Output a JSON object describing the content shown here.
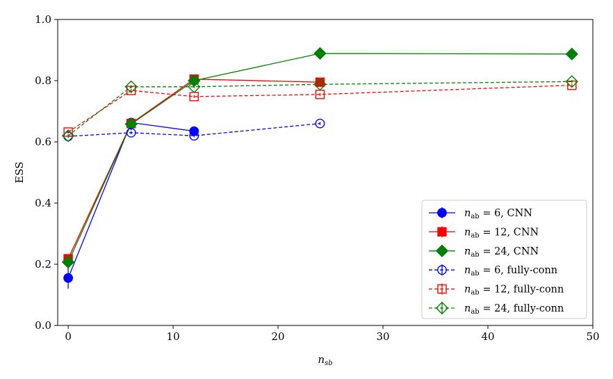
{
  "chart_data": {
    "type": "line",
    "title": "",
    "xlabel": "n",
    "xlabel_sub": "sb",
    "ylabel": "ESS",
    "xlim": [
      -1,
      50
    ],
    "ylim": [
      0.0,
      1.0
    ],
    "xticks": [
      0,
      10,
      20,
      30,
      40,
      50
    ],
    "yticks": [
      0.0,
      0.2,
      0.4,
      0.6,
      0.8,
      1.0
    ],
    "xtick_labels": [
      "0",
      "10",
      "20",
      "30",
      "40",
      "50"
    ],
    "ytick_labels": [
      "0.0",
      "0.2",
      "0.4",
      "0.6",
      "0.8",
      "1.0"
    ],
    "grid": false,
    "legend_position": "lower-right",
    "series": [
      {
        "name_main": "n",
        "name_sub": "ab",
        "name_rest": " = 6, CNN",
        "color": "#0000ff",
        "marker": "circle",
        "filled": true,
        "dashed": false,
        "x": [
          0,
          6,
          12
        ],
        "y": [
          0.155,
          0.663,
          0.635
        ],
        "err": [
          0.035,
          0.008,
          0.008
        ]
      },
      {
        "name_main": "n",
        "name_sub": "ab",
        "name_rest": " = 12, CNN",
        "color": "#ff0000",
        "marker": "square",
        "filled": true,
        "dashed": false,
        "x": [
          0,
          6,
          12,
          24
        ],
        "y": [
          0.218,
          0.66,
          0.805,
          0.795
        ],
        "err": [
          0.008,
          0.006,
          0.005,
          0.005
        ]
      },
      {
        "name_main": "n",
        "name_sub": "ab",
        "name_rest": " = 24, CNN",
        "color": "#008000",
        "marker": "diamond",
        "filled": true,
        "dashed": false,
        "x": [
          0,
          6,
          12,
          24,
          48
        ],
        "y": [
          0.207,
          0.658,
          0.8,
          0.889,
          0.887
        ],
        "err": [
          0.008,
          0.006,
          0.005,
          0.004,
          0.004
        ]
      },
      {
        "name_main": "n",
        "name_sub": "ab",
        "name_rest": " = 6, fully-conn",
        "color": "#0000ff",
        "marker": "circle",
        "filled": false,
        "dashed": true,
        "x": [
          0,
          6,
          12,
          24
        ],
        "y": [
          0.618,
          0.63,
          0.62,
          0.66
        ],
        "err": [
          0.005,
          0.005,
          0.005,
          0.005
        ]
      },
      {
        "name_main": "n",
        "name_sub": "ab",
        "name_rest": " = 12, fully-conn",
        "color": "#ff0000",
        "marker": "square",
        "filled": false,
        "dashed": true,
        "x": [
          0,
          6,
          12,
          24,
          48
        ],
        "y": [
          0.632,
          0.768,
          0.748,
          0.755,
          0.785
        ],
        "err": [
          0.005,
          0.005,
          0.005,
          0.005,
          0.005
        ]
      },
      {
        "name_main": "n",
        "name_sub": "ab",
        "name_rest": " = 24, fully-conn",
        "color": "#008000",
        "marker": "diamond",
        "filled": false,
        "dashed": true,
        "x": [
          0,
          6,
          12,
          24,
          48
        ],
        "y": [
          0.62,
          0.78,
          0.78,
          0.788,
          0.797
        ],
        "err": [
          0.005,
          0.005,
          0.005,
          0.005,
          0.005
        ]
      }
    ]
  }
}
